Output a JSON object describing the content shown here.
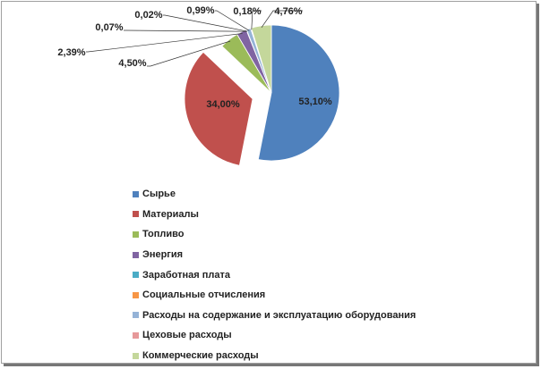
{
  "chart_data": {
    "type": "pie",
    "title": "",
    "series": [
      {
        "name": "Сырье",
        "value": 53.1,
        "label": "53,10%",
        "color": "#4f81bd"
      },
      {
        "name": "Материалы",
        "value": 34.0,
        "label": "34,00%",
        "color": "#c0504d"
      },
      {
        "name": "Топливо",
        "value": 4.5,
        "label": "4,50%",
        "color": "#9bbb59"
      },
      {
        "name": "Энергия",
        "value": 2.39,
        "label": "2,39%",
        "color": "#8064a2"
      },
      {
        "name": "Заработная  плата",
        "value": 0.07,
        "label": "0,07%",
        "color": "#4bacc6"
      },
      {
        "name": "Социальные отчисления",
        "value": 0.02,
        "label": "0,02%",
        "color": "#f79646"
      },
      {
        "name": "Расходы на содержание и эксплуатацию оборудования",
        "value": 0.99,
        "label": "0,99%",
        "color": "#95b3d7"
      },
      {
        "name": "Цеховые расходы",
        "value": 0.18,
        "label": "0,18%",
        "color": "#e6999a"
      },
      {
        "name": "Коммерческие расходы",
        "value": 4.76,
        "label": "4,76%",
        "color": "#c4d79b"
      }
    ],
    "exploded": [
      "Материалы"
    ],
    "legend_position": "bottom"
  }
}
